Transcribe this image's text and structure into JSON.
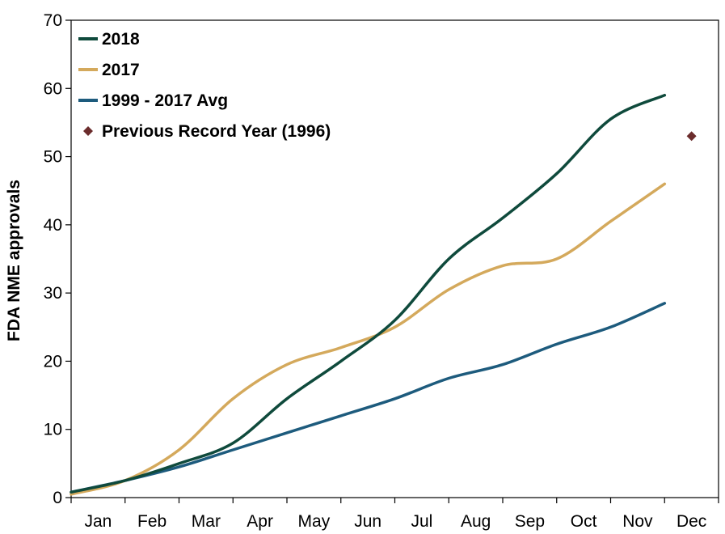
{
  "chart_data": {
    "type": "line",
    "title": "",
    "xlabel": "",
    "ylabel": "FDA NME approvals",
    "categories": [
      "Jan",
      "Feb",
      "Mar",
      "Apr",
      "May",
      "Jun",
      "Jul",
      "Aug",
      "Sep",
      "Oct",
      "Nov",
      "Dec"
    ],
    "y_ticks": [
      "0",
      "10",
      "20",
      "30",
      "40",
      "50",
      "60",
      "70"
    ],
    "ylim": [
      0,
      70
    ],
    "grid": false,
    "legend_position": "top-left",
    "series": [
      {
        "name": "2018",
        "color": "#0f4a3c",
        "x": [
          0,
          1,
          2,
          3,
          4,
          5,
          6,
          7,
          8,
          9,
          10,
          11,
          12
        ],
        "values": [
          0.8,
          2.5,
          5,
          8,
          14.5,
          20,
          26,
          35,
          41,
          47.5,
          55.5,
          59,
          null
        ]
      },
      {
        "name": "2017",
        "color": "#d4a95c",
        "x": [
          0,
          1,
          2,
          3,
          4,
          5,
          6,
          7,
          8,
          9,
          10,
          11,
          12
        ],
        "values": [
          0.5,
          2.5,
          7,
          14.5,
          19.5,
          22,
          25,
          30.5,
          34,
          35,
          40.5,
          46,
          null
        ]
      },
      {
        "name": "1999 - 2017 Avg",
        "color": "#1d5b7d",
        "x": [
          0,
          1,
          2,
          3,
          4,
          5,
          6,
          7,
          8,
          9,
          10,
          11,
          12
        ],
        "values": [
          0.8,
          2.5,
          4.5,
          7,
          9.5,
          12,
          14.5,
          17.5,
          19.5,
          22.5,
          25,
          28.5,
          null
        ]
      }
    ],
    "markers": [
      {
        "name": "Previous Record Year (1996)",
        "color": "#6b2c2c",
        "category": "Dec",
        "value": 53
      }
    ]
  }
}
